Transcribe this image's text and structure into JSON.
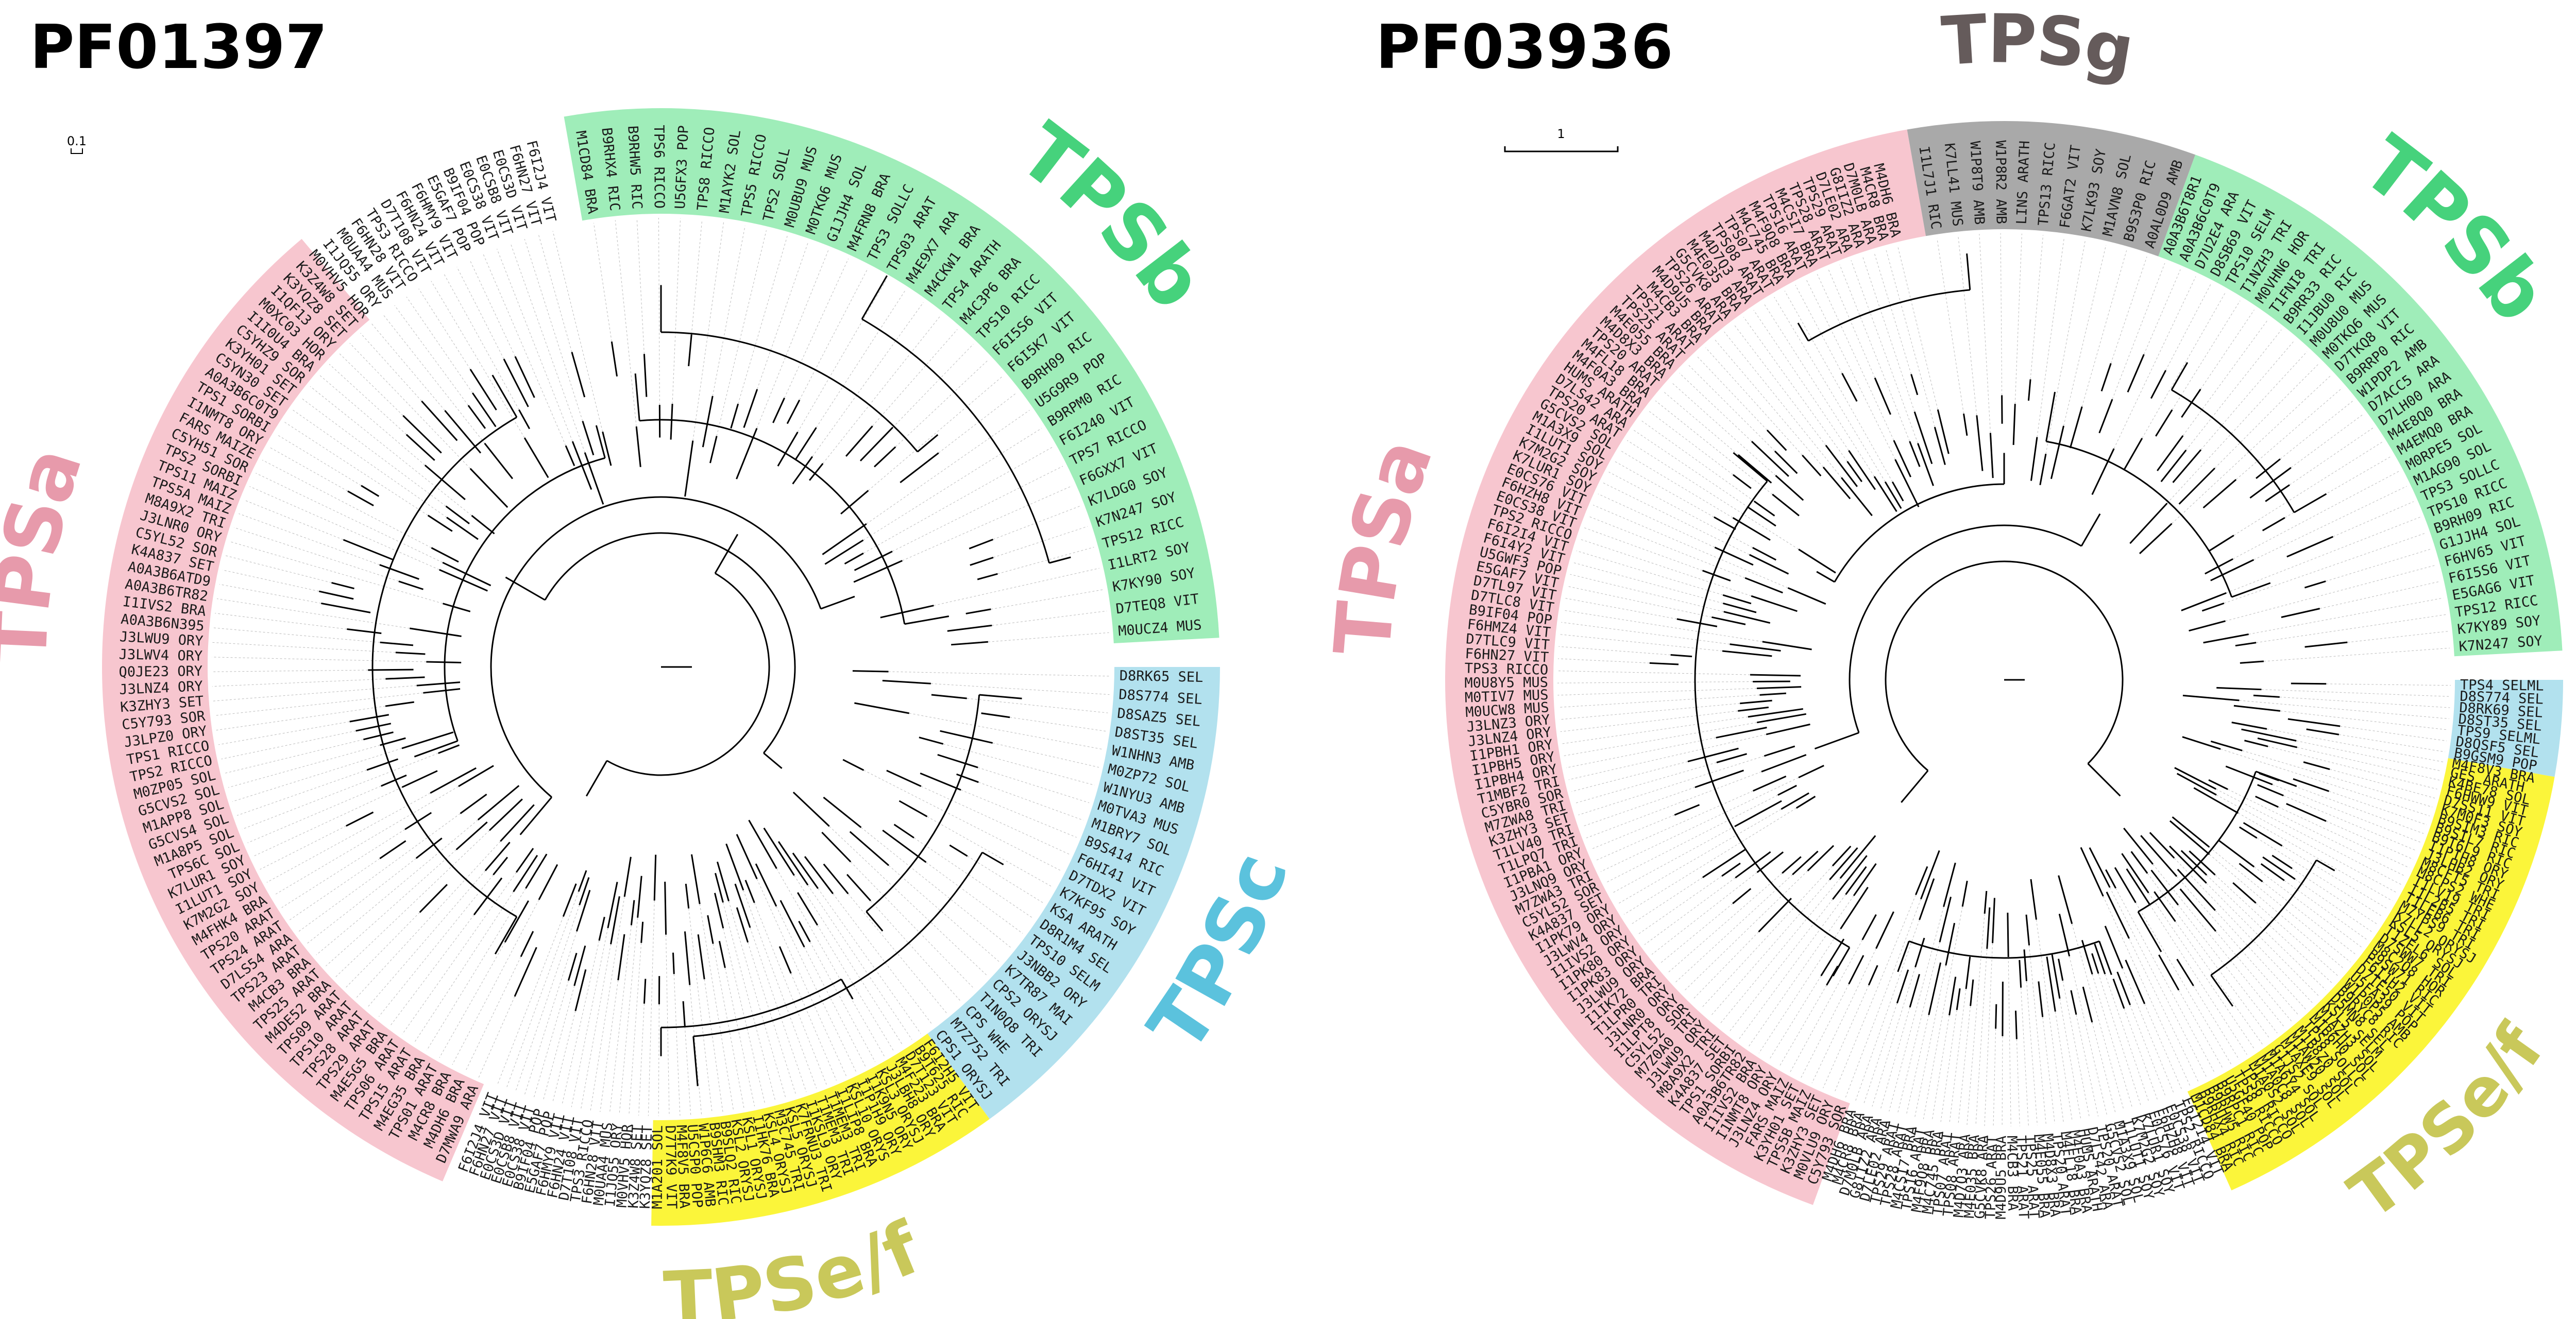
{
  "panels": [
    {
      "id": "left",
      "title": "PF01397",
      "scale_label": "0.1",
      "clades": [
        {
          "name": "TPSa",
          "color": "#f7c6cf",
          "label_color": "#e79aab",
          "start": -247,
          "end": -130
        },
        {
          "name": "TPSb",
          "color": "#9fedb9",
          "label_color": "#46d27c",
          "start": -100,
          "end": -3
        },
        {
          "name": "TPSc",
          "color": "#b2e1ee",
          "label_color": "#5bc2dd",
          "start": 0,
          "end": 54
        },
        {
          "name": "TPSe/f",
          "color": "#fbf53a",
          "label_color": "#c9c85a",
          "start": 54,
          "end": 91
        }
      ],
      "clade_labels": [
        {
          "name": "TPSa",
          "angle": -170
        },
        {
          "name": "TPSb",
          "angle": -45
        },
        {
          "name": "TPSc",
          "angle": 27
        },
        {
          "name": "TPSe/f",
          "angle": 78
        }
      ],
      "leaves_left": [
        "D7MWA9 ARA",
        "M4DH6 BRA",
        "M4CR8 BRA",
        "TPS01 ARAT",
        "M4EG35 BRA",
        "TPS15 ARAT",
        "TPS06 ARAT",
        "M4E5G5 BRA",
        "TPS29 ARAT",
        "TPS28 ARAT",
        "TPS10 ARAT",
        "TPS09 ARAT",
        "M4DE52 BRA",
        "TPS25 ARAT",
        "M4CB3 BRA",
        "TPS23 ARAT",
        "D7LS54 ARA",
        "TPS24 ARAT",
        "TPS20 ARAT",
        "M4FHK4 BRA",
        "K7M2G2 SOY",
        "I1LUT1 SOY",
        "K7LUR1 SOY",
        "TPS6C SOL",
        "M1A8P5 SOL",
        "G5CVS4 SOL",
        "M1APP8 SOL",
        "G5CVS2 SOL",
        "M0ZP05 SOL",
        "TPS2 RICCO",
        "TPS1 RICCO",
        "J3LPZ0 ORY",
        "C5Y793 SOR",
        "K3ZHY3 SET",
        "J3LNZ4 ORY",
        "Q0JE23 ORY",
        "J3LWV4 ORY",
        "J3LWU9 ORY",
        "A0A3B6N395",
        "I1IVS2 BRA",
        "A0A3B6TR82",
        "A0A3B6ATD9",
        "K4A837 SET",
        "C5YL52 SOR",
        "J3LNR0 ORY",
        "M8A9X2 TRI",
        "TPS5A MAIZ",
        "TPS11 MAIZ",
        "TPS2 SORBI",
        "C5YH51 SOR",
        "FARS MAIZE",
        "I1NMT8 ORY",
        "TPS1 SORBI",
        "A0A3B6C0T9",
        "C5YN30 SET",
        "K3YH01 SET",
        "C5YHZ9 SOR",
        "I1I0U4 BRA",
        "M0XC03 HOR",
        "I1QF13 ORY",
        "K3YQZ8 SET",
        "K3Z4W8 SET",
        "M0VHV5 HOR",
        "I1JQ55 ORY",
        "M0UAA4 MUS",
        "F6HN28 VIT",
        "TPS3 RICCO",
        "D7T108 VIT",
        "F6HN24 VIT",
        "F6HMY9 VIT",
        "E5GAF7 POP",
        "B9IF04 POP",
        "E0CS38 VIT",
        "E0CSB8 VIT",
        "E0CS3D VIT",
        "F6HN27 VIT",
        "F6I2J4 VIT"
      ],
      "leaves_right": [
        "M0UCZ4 MUS",
        "D7TEQ8 VIT",
        "K7KY90 SOY",
        "I1LRT2 SOY",
        "TPS12 RICC",
        "K7N247 SOY",
        "K7LDG0 SOY",
        "F6GXX7 VIT",
        "TPS7 RICCO",
        "F6I240 VIT",
        "B9RPM0 RIC",
        "U5G9R9 POP",
        "B9RH09 RIC",
        "F6I5K7 VIT",
        "F6I5S6 VIT",
        "TPS10 RICC",
        "M4C3P6 BRA",
        "TPS4 ARATH",
        "M4CKW1 BRA",
        "M4E9X7 ARA",
        "TPS03 ARAT",
        "TPS3 SOLLC",
        "M4FRN8 BRA",
        "G1JJH4 SOL",
        "M0TKQ6 MUS",
        "M0UBU9 MUS",
        "TPS2 SOLL",
        "TPS5 RICCO",
        "M1AYK2 SOL",
        "TPS8 RICCO",
        "U5GFX3 POP",
        "TPS6 RICCO",
        "B9RHW5 RIC",
        "B9RHX4 RIC",
        "M1CD84 BRA"
      ],
      "leaves_tpsc": [
        "D8RK65 SEL",
        "D8S774 SEL",
        "D8SAZ5 SEL",
        "D8ST35 SEL",
        "W1NHN3 AMB",
        "M0ZP72 SOL",
        "W1NYU3 AMB",
        "M0TVA3 MUS",
        "M1BRY7 SOL",
        "B9S414 RIC",
        "F6HI41 VIT",
        "D7TDX2 VIT",
        "K7KF95 SOY",
        "KSA ARATH",
        "D8R1M4 SEL",
        "TPS10 SELM",
        "J3NBB2 ORY",
        "K7TR87 MAI",
        "CPS2 ORYSJ",
        "T1N0Q8 TRI",
        "CPS WHE",
        "M7Z752 TRI",
        "CPS1 ORYSJ"
      ],
      "leaves_tpsef": [
        "M1A201 SOL",
        "D7T7K9 VIT",
        "M4F8V5 BRA",
        "U5CSP0 POP",
        "W1P6C6 AMB",
        "B9SHM3 RIC",
        "B9SLQ2 RIC",
        "KSL2 ORYSJ",
        "KSL1 ORYSJ",
        "I1HK76 BRA",
        "KSL4 ORYSJ",
        "M3C745 TRI",
        "KSL5 ORYSJ",
        "K7FRNU3 TRI",
        "I1KSL9 ORY",
        "T1MEM3 TRI",
        "T1MEM3 TRI",
        "I1LIP8 BRA",
        "KSL10 ORYS",
        "I1P1H9 ORY",
        "I1K9N5 ORY",
        "KSL3 ORYSJ",
        "J3LBH8 ORY",
        "M4F223 BRA",
        "D7T123 VIT",
        "B9T625 RIC",
        "F6I2H5 VIT"
      ]
    },
    {
      "id": "right",
      "title": "PF03936",
      "scale_label": "1",
      "clades": [
        {
          "name": "TPSa",
          "color": "#f7c6cf",
          "label_color": "#e79aab",
          "start": -250,
          "end": -100
        },
        {
          "name": "TPSg",
          "color": "#a9a9a9",
          "label_color": "#655b5b",
          "start": -100,
          "end": -70
        },
        {
          "name": "TPSb",
          "color": "#9fedb9",
          "label_color": "#46d27c",
          "start": -70,
          "end": -3
        },
        {
          "name": "TPSc",
          "color": "#b2e1ee",
          "label_color": "#5bc2dd",
          "start": 0,
          "end": 10
        },
        {
          "name": "TPSe/f",
          "color": "#fbf53a",
          "label_color": "#c9c85a",
          "start": 10,
          "end": 66
        }
      ],
      "clade_labels": [
        {
          "name": "TPSa",
          "angle": -168
        },
        {
          "name": "TPSg",
          "angle": -87
        },
        {
          "name": "TPSb",
          "angle": -45
        },
        {
          "name": "TPSc",
          "angle": 6
        },
        {
          "name": "TPSe/f",
          "angle": 45
        }
      ],
      "leaves_left": [
        "C5Y793 SOR",
        "M0VLU9 ORY",
        "K3ZHY3 SET",
        "TPS5B MAIZ",
        "K3YH01 SET",
        "FARS MAIZ",
        "J3LNZ4 ORY",
        "I1NMT8 ORY",
        "I1IVS2 BRA",
        "A0A3B6TR82",
        "TPS1 SORBI",
        "K4A837 SET",
        "M8A9X2 TRI",
        "J3LWU9 ORY",
        "M7Z0A0 TRI",
        "C5YL52 SOR",
        "I1LPT8 ORY",
        "J3LNR0 ORY",
        "T1LPR0 TRI",
        "I1IK72 BRA",
        "J3LWU9 ORY",
        "I1PK83 ORY",
        "I1PK80 ORY",
        "I1IVS2 ORY",
        "J3LWV4 ORY",
        "I1PK79 ORY",
        "K4A837 SET",
        "C5YL52 SOR",
        "M7ZWA3 TRI",
        "J3LNQ9 ORY",
        "I1PBA1 ORY",
        "T1LPQ7 TRI",
        "T1LV40 TRI",
        "K3ZHY3 SET",
        "M7ZWA8 TRI",
        "C5YBR0 SOR",
        "T1MBF2 TRI",
        "I1PBH4 ORY",
        "I1PBH5 ORY",
        "I1PBH1 ORY",
        "J3LNZ4 ORY",
        "J3LNZ3 ORY",
        "M0UCW8 MUS",
        "M0TIV7 MUS",
        "M0U8Y5 MUS",
        "TPS3 RICCO",
        "F6HN27 VIT",
        "D7TLC9 VIT",
        "F6HMZ4 VIT",
        "B9IF04 POP",
        "D7TLC8 VIT",
        "D7TL97 VIT",
        "E5GAF7 VIT",
        "U5GWF3 POP",
        "F6I4Y2 VIT",
        "F6I2I4 VIT",
        "TPS2 RICCO",
        "E0CS38 VIT",
        "F6HZH8 VIT",
        "E0CS76 VIT",
        "K7LUR1 SOY",
        "K7M2G2 SOY",
        "I1LUT1 SOY",
        "M1A3X9 SOL",
        "G5CVS2 SOL",
        "TPS20 ARAT",
        "D7LS42 ARA",
        "HUMS ARATH",
        "M4F0A3 BRA",
        "M4FL18 BRA",
        "TPS20 ARAT",
        "M4D8X3 BRA",
        "M4E055 BRA",
        "TPS25 ARAT",
        "TPS21 ARAT",
        "M4CB3 BRA",
        "M4D9U5 BRA",
        "TPS26 ARAT",
        "G5CVK8 ARA",
        "M4E035 BRA",
        "M4D7Q3 ARA",
        "TPS08 ARAT",
        "TPS07 ARAT",
        "M4C745 BRA",
        "M4F9Q8 BRA",
        "TPS16 ARAT",
        "M4CSI7 BRA",
        "TPS28 ARAT",
        "TPS29 ARAT",
        "D7LE02 ARA",
        "G8IIZ2 ARA",
        "D7M0LB ARA",
        "M4CR8 BRA",
        "M4DH6 BRA"
      ],
      "leaves_right": [
        "K7N247 SOY",
        "K7KY89 SOY",
        "TPS12 RICC",
        "E5GAG6 VIT",
        "F6I5S6 VIT",
        "F6HV65 VIT",
        "G1JJH4 SOL",
        "B9RH09 RIC",
        "TPS10 RICC",
        "TPS3 SOLLC",
        "M1AG90 SOL",
        "M0RPE5 SOL",
        "M4EMQ0 BRA",
        "M4E8Q0 BRA",
        "D7LH00 ARA",
        "D7ACC5 ARA",
        "W1PDP2 AMB",
        "B9RRP0 RIC",
        "D7TKQ8 VIT",
        "M0TKQ6 MUS",
        "M0U8U0 MUS",
        "I1JBU0 RIC",
        "B9RR33 RIC",
        "T1FNI8 TRI",
        "M0VHN6 HOR",
        "T1NZH3 TRI",
        "TPS10 SELM",
        "D8SB69 VIT",
        "D7U2E4 ARA",
        "A0A3B6C0T9",
        "A0A3B6T8R1"
      ],
      "leaves_tpsg": [
        "I1L7J1 RIC",
        "K7LL41 MUS",
        "W1P8T9 AMB",
        "W1P8R2 AMB",
        "LINS ARATH",
        "TPS13 RICC",
        "F6GAT2 VIT",
        "K7LK93 SOY",
        "M1AVN8 SOL",
        "B9S3P0 RIC",
        "A0AL0D9 AMB"
      ],
      "leaves_tpsc": [
        "TPS4 SELML",
        "D8S774 SEL",
        "D8RK69 SEL",
        "D8ST35 SEL",
        "TPS9 SELML",
        "D8QSF5 SEL",
        "B9GSM9 POP"
      ],
      "leaves_tpsef": [
        "M4F8V3 BRA",
        "GES ARATH",
        "K4BE78 SOL",
        "F6HWW9 VIT",
        "D7SS11 VIT",
        "K7M0F3 SOY",
        "B9SIM3 RIC",
        "B9SIL7 RIC",
        "B9T6L9 RIC",
        "I1PIH8 ORY",
        "J3LHB2 ORY",
        "M8CFT5 TRI",
        "M8CPS2 WHE",
        "T1LV19 TRI",
        "I1L2B5 TRI",
        "T1LEB6 TRI",
        "M7YBS9 TRI",
        "K7LL2 ORYSJ",
        "KSL5 ORYSJ",
        "T1ZEL6 SOL",
        "D7SWW7 TRI",
        "M8C2Q8 HOR",
        "B9SW71 RIC",
        "F6I1H2 VIT",
        "D7TE50 VIT",
        "U5FA39 POP",
        "W1P0P5 AMB",
        "B9RYC8 RIC",
        "D5MN8 SEL",
        "KSL5 SELM",
        "M1AZH3 SOL",
        "M1B6H0 SOL",
        "TPS8 SOLLC",
        "M1B8Z0 SOL",
        "M1AW20 SOL",
        "M1AXE9 SOL",
        "G1JS2 SOL",
        "M1A6Y4 SOL",
        "M1A0C8 SOL",
        "M1A0S2 SOL",
        "TPS6 RICCO",
        "TPS8 RICCO",
        "U5GF40 POP",
        "B9RPC1 RIC",
        "B9RHW5 RIC",
        "B9RHX4 RIC",
        "M1CD84 BRA"
      ]
    }
  ]
}
